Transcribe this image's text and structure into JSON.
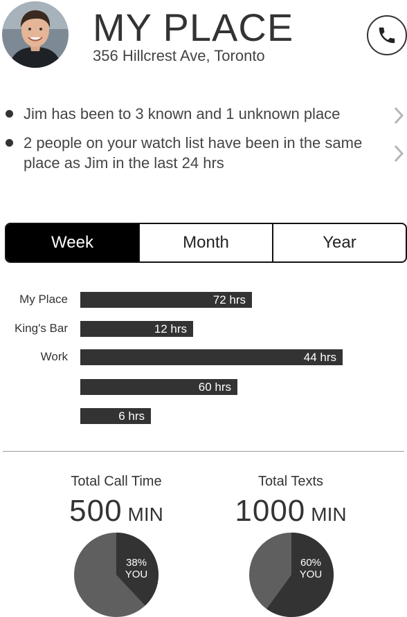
{
  "header": {
    "title": "MY PLACE",
    "address": "356 Hillcrest Ave, Toronto",
    "avatar_icon": "person-avatar",
    "call_icon": "phone-icon"
  },
  "bullets": [
    {
      "text": "Jim has been to 3 known and 1 unknown place"
    },
    {
      "text": "2 people on your watch list have been in the same place as Jim in the last 24 hrs"
    }
  ],
  "tabs": {
    "items": [
      "Week",
      "Month",
      "Year"
    ],
    "selected": "Week"
  },
  "chart_data": {
    "type": "bar",
    "orientation": "horizontal",
    "categories": [
      "My Place",
      "King's Bar",
      "Work",
      "",
      ""
    ],
    "values": [
      72,
      12,
      44,
      60,
      6
    ],
    "value_labels": [
      "72 hrs",
      "12 hrs",
      "44 hrs",
      "60 hrs",
      "6 hrs"
    ],
    "unit": "hrs"
  },
  "stats": {
    "calls": {
      "label": "Total Call Time",
      "value": "500",
      "unit": "MIN",
      "pie_percent": "38%",
      "pie_sub": "YOU",
      "fraction": 0.38
    },
    "texts": {
      "label": "Total Texts",
      "value": "1000",
      "unit": "MIN",
      "pie_percent": "60%",
      "pie_sub": "YOU",
      "fraction": 0.6
    }
  },
  "colors": {
    "dark": "#333333",
    "pie_light": "#5f5f5f",
    "active_tab": "#000000"
  }
}
